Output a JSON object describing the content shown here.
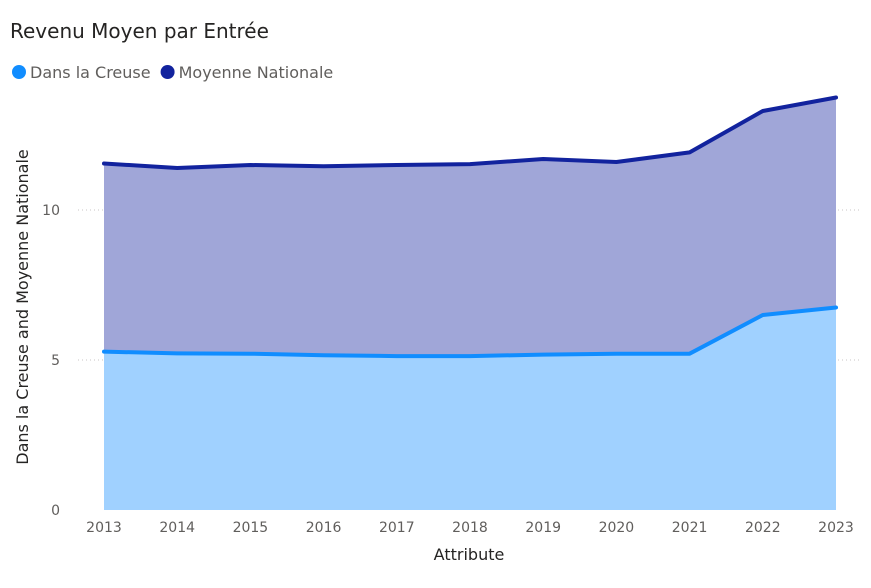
{
  "chart_data": {
    "type": "area",
    "title": "Revenu Moyen par Entrée",
    "xlabel": "Attribute",
    "ylabel": "Dans la Creuse and Moyenne Nationale",
    "categories": [
      "2013",
      "2014",
      "2015",
      "2016",
      "2017",
      "2018",
      "2019",
      "2020",
      "2021",
      "2022",
      "2023"
    ],
    "yticks": [
      0,
      5,
      10
    ],
    "ylim": [
      0,
      14
    ],
    "grid": true,
    "legend_position": "top-left",
    "series": [
      {
        "name": "Dans la Creuse",
        "color": "#118dff",
        "fill": "#a0d1ff",
        "values": [
          5.28,
          5.22,
          5.21,
          5.16,
          5.13,
          5.13,
          5.18,
          5.21,
          5.21,
          6.5,
          6.75
        ]
      },
      {
        "name": "Moyenne Nationale",
        "color": "#12239e",
        "fill": "#a0a6d8",
        "values": [
          11.55,
          11.4,
          11.5,
          11.46,
          11.5,
          11.53,
          11.7,
          11.6,
          11.92,
          13.3,
          13.75
        ]
      }
    ]
  }
}
